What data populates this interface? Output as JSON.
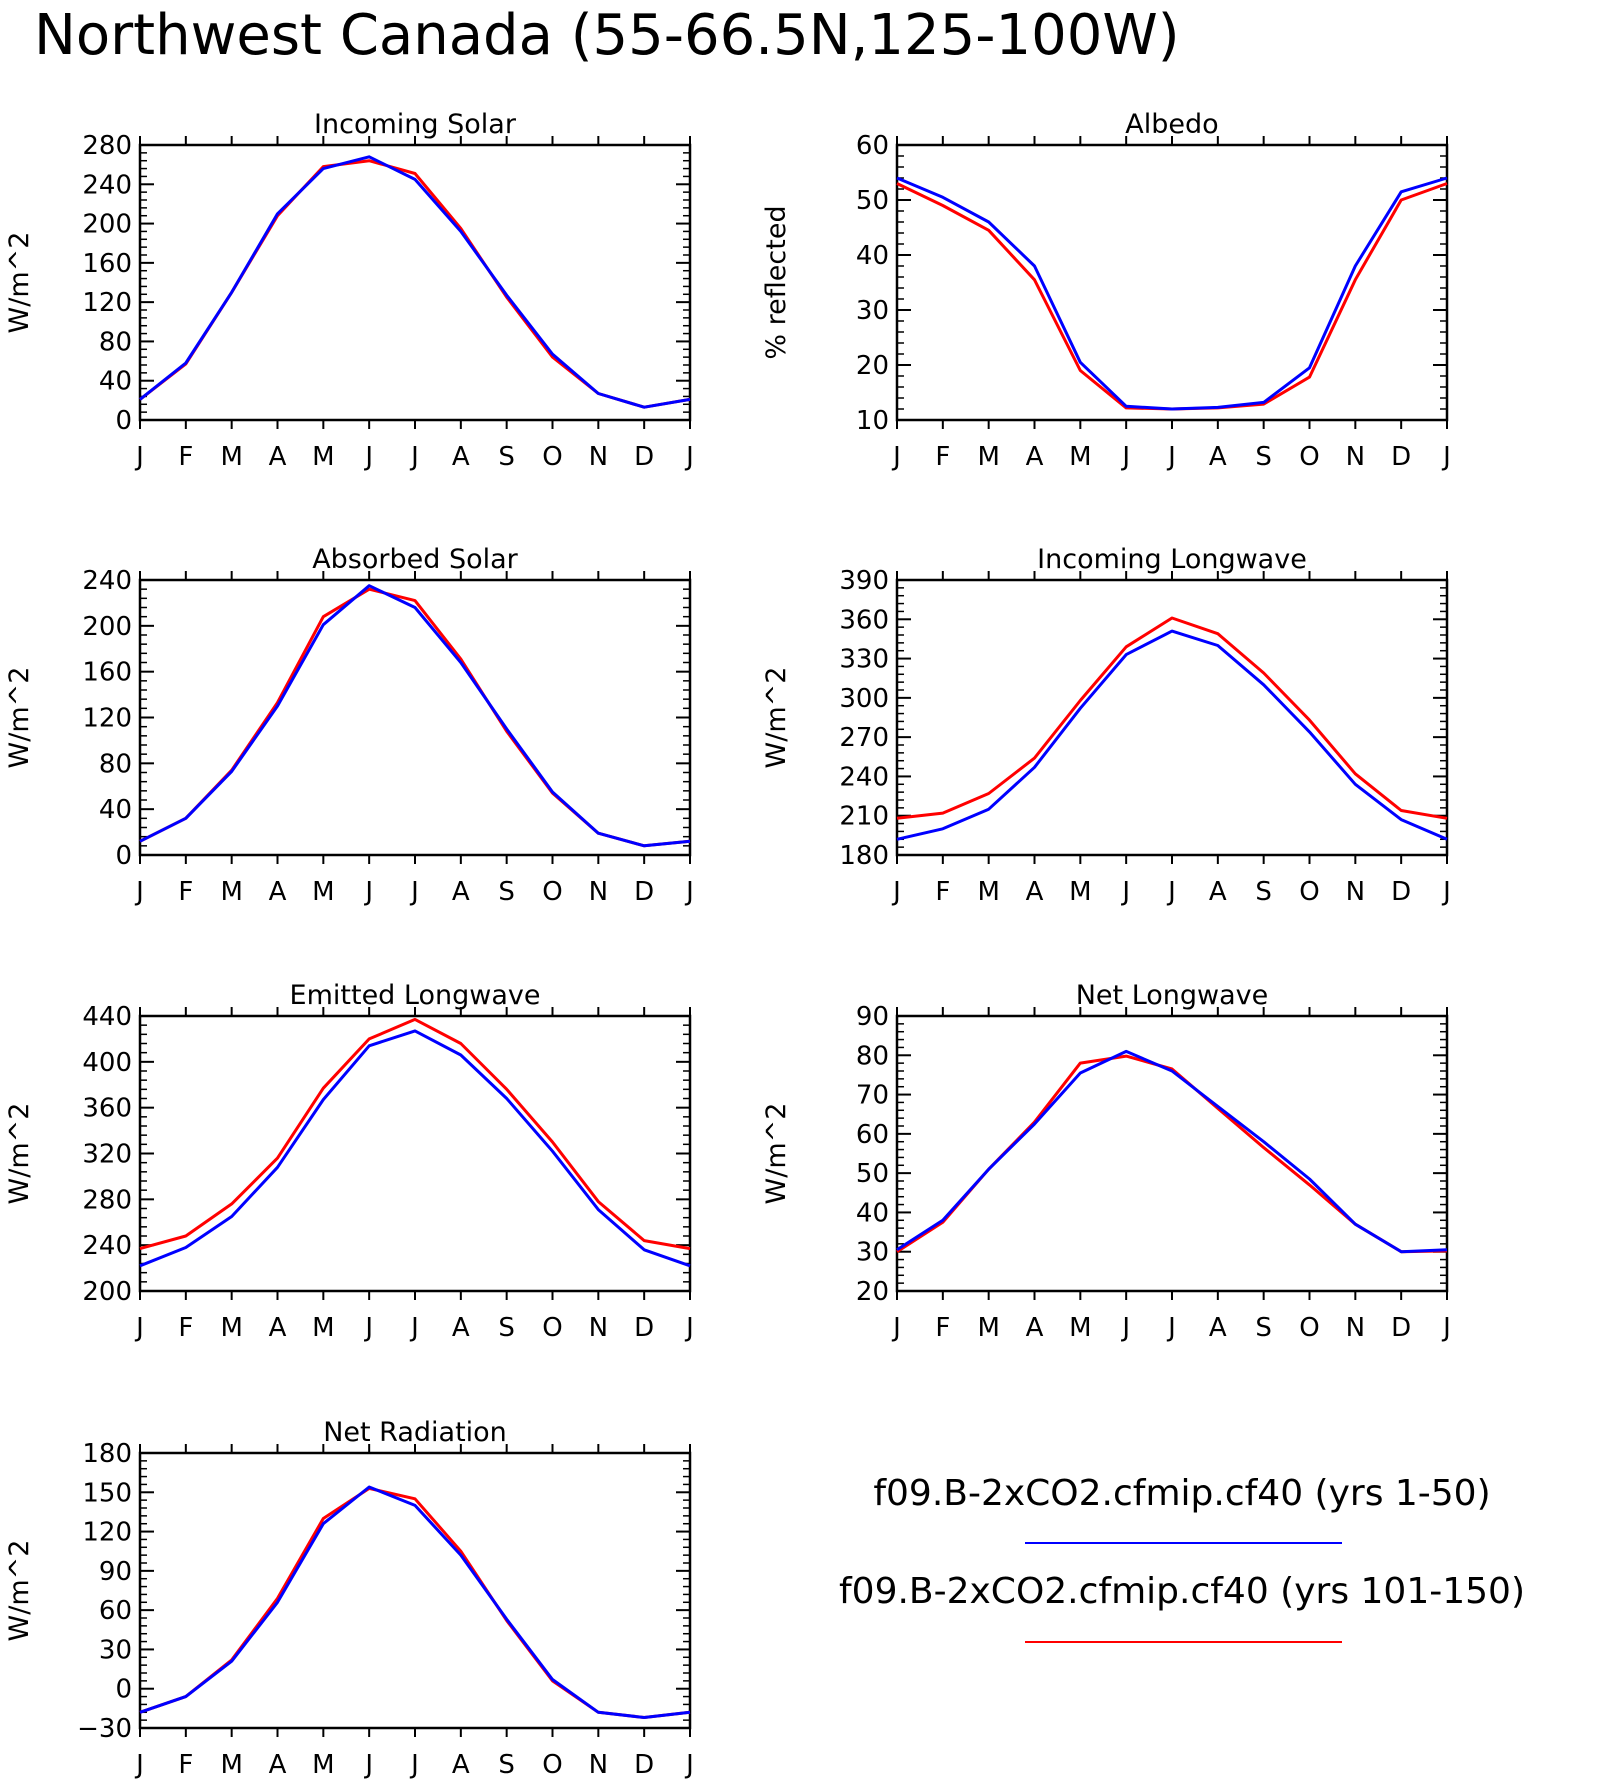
{
  "title": "Northwest Canada (55-66.5N,125-100W)",
  "legend": {
    "entries": [
      {
        "label": "f09.B-2xCO2.cfmip.cf40 (yrs 1-50)",
        "color": "#0000ff"
      },
      {
        "label": "f09.B-2xCO2.cfmip.cf40 (yrs 101-150)",
        "color": "#ff0000"
      }
    ]
  },
  "chart_data": [
    {
      "type": "line",
      "title": "Incoming Solar",
      "ylabel": "W/m^2",
      "categories": [
        "J",
        "F",
        "M",
        "A",
        "M",
        "J",
        "J",
        "A",
        "S",
        "O",
        "N",
        "D",
        "J"
      ],
      "ylim": [
        0,
        280
      ],
      "yticks": [
        0,
        40,
        80,
        120,
        160,
        200,
        240,
        280
      ],
      "grid": false,
      "series": [
        {
          "name": "f09.B-2xCO2.cfmip.cf40 (yrs 1-50)",
          "color": "#0000ff",
          "values": [
            21,
            58,
            130,
            210,
            256,
            268,
            245,
            192,
            127,
            67,
            27,
            13,
            21
          ]
        },
        {
          "name": "f09.B-2xCO2.cfmip.cf40 (yrs 101-150)",
          "color": "#ff0000",
          "values": [
            21,
            57,
            130,
            208,
            258,
            264,
            251,
            195,
            125,
            64,
            27,
            13,
            21
          ]
        }
      ]
    },
    {
      "type": "line",
      "title": "Albedo",
      "ylabel": "% reflected",
      "categories": [
        "J",
        "F",
        "M",
        "A",
        "M",
        "J",
        "J",
        "A",
        "S",
        "O",
        "N",
        "D",
        "J"
      ],
      "ylim": [
        10,
        60
      ],
      "yticks": [
        10,
        20,
        30,
        40,
        50,
        60
      ],
      "grid": false,
      "series": [
        {
          "name": "f09.B-2xCO2.cfmip.cf40 (yrs 1-50)",
          "color": "#0000ff",
          "values": [
            54,
            50.5,
            46,
            38,
            20.5,
            12.5,
            12,
            12.3,
            13.2,
            19.5,
            38,
            51.5,
            54
          ]
        },
        {
          "name": "f09.B-2xCO2.cfmip.cf40 (yrs 101-150)",
          "color": "#ff0000",
          "values": [
            53,
            49,
            44.5,
            35.5,
            19,
            12.2,
            12,
            12.2,
            12.9,
            17.8,
            35.5,
            50,
            53
          ]
        }
      ]
    },
    {
      "type": "line",
      "title": "Absorbed Solar",
      "ylabel": "W/m^2",
      "categories": [
        "J",
        "F",
        "M",
        "A",
        "M",
        "J",
        "J",
        "A",
        "S",
        "O",
        "N",
        "D",
        "J"
      ],
      "ylim": [
        0,
        240
      ],
      "yticks": [
        0,
        40,
        80,
        120,
        160,
        200,
        240
      ],
      "grid": false,
      "series": [
        {
          "name": "f09.B-2xCO2.cfmip.cf40 (yrs 1-50)",
          "color": "#0000ff",
          "values": [
            12,
            32,
            73,
            130,
            201,
            235,
            216,
            168,
            110,
            55,
            19,
            8,
            12
          ]
        },
        {
          "name": "f09.B-2xCO2.cfmip.cf40 (yrs 101-150)",
          "color": "#ff0000",
          "values": [
            12,
            32,
            74,
            133,
            208,
            232,
            222,
            171,
            108,
            54,
            19,
            8,
            12
          ]
        }
      ]
    },
    {
      "type": "line",
      "title": "Incoming Longwave",
      "ylabel": "W/m^2",
      "categories": [
        "J",
        "F",
        "M",
        "A",
        "M",
        "J",
        "J",
        "A",
        "S",
        "O",
        "N",
        "D",
        "J"
      ],
      "ylim": [
        180,
        390
      ],
      "yticks": [
        180,
        210,
        240,
        270,
        300,
        330,
        360,
        390
      ],
      "grid": false,
      "series": [
        {
          "name": "f09.B-2xCO2.cfmip.cf40 (yrs 1-50)",
          "color": "#0000ff",
          "values": [
            192,
            200,
            215,
            247,
            292,
            333,
            351,
            340,
            310,
            274,
            234,
            207,
            192
          ]
        },
        {
          "name": "f09.B-2xCO2.cfmip.cf40 (yrs 101-150)",
          "color": "#ff0000",
          "values": [
            208,
            212,
            227,
            254,
            298,
            339,
            361,
            349,
            319,
            283,
            242,
            214,
            208
          ]
        }
      ]
    },
    {
      "type": "line",
      "title": "Emitted Longwave",
      "ylabel": "W/m^2",
      "categories": [
        "J",
        "F",
        "M",
        "A",
        "M",
        "J",
        "J",
        "A",
        "S",
        "O",
        "N",
        "D",
        "J"
      ],
      "ylim": [
        200,
        440
      ],
      "yticks": [
        200,
        240,
        280,
        320,
        360,
        400,
        440
      ],
      "grid": false,
      "series": [
        {
          "name": "f09.B-2xCO2.cfmip.cf40 (yrs 1-50)",
          "color": "#0000ff",
          "values": [
            222,
            238,
            265,
            308,
            367,
            414,
            427,
            406,
            368,
            322,
            271,
            236,
            222
          ]
        },
        {
          "name": "f09.B-2xCO2.cfmip.cf40 (yrs 101-150)",
          "color": "#ff0000",
          "values": [
            237,
            248,
            276,
            316,
            377,
            420,
            437,
            416,
            376,
            330,
            278,
            244,
            237
          ]
        }
      ]
    },
    {
      "type": "line",
      "title": "Net Longwave",
      "ylabel": "W/m^2",
      "categories": [
        "J",
        "F",
        "M",
        "A",
        "M",
        "J",
        "J",
        "A",
        "S",
        "O",
        "N",
        "D",
        "J"
      ],
      "ylim": [
        20,
        90
      ],
      "yticks": [
        20,
        30,
        40,
        50,
        60,
        70,
        80,
        90
      ],
      "grid": false,
      "series": [
        {
          "name": "f09.B-2xCO2.cfmip.cf40 (yrs 1-50)",
          "color": "#0000ff",
          "values": [
            30.5,
            38,
            51,
            62.5,
            75.5,
            81,
            76,
            67,
            58,
            48.5,
            37,
            30,
            30.5
          ]
        },
        {
          "name": "f09.B-2xCO2.cfmip.cf40 (yrs 101-150)",
          "color": "#ff0000",
          "values": [
            30,
            37.5,
            51,
            63,
            78,
            79.8,
            76.5,
            66.5,
            56.5,
            47,
            37,
            30,
            30.2
          ]
        }
      ]
    },
    {
      "type": "line",
      "title": "Net Radiation",
      "ylabel": "W/m^2",
      "categories": [
        "J",
        "F",
        "M",
        "A",
        "M",
        "J",
        "J",
        "A",
        "S",
        "O",
        "N",
        "D",
        "J"
      ],
      "ylim": [
        -30,
        180
      ],
      "yticks": [
        -30,
        0,
        30,
        60,
        90,
        120,
        150,
        180
      ],
      "grid": false,
      "series": [
        {
          "name": "f09.B-2xCO2.cfmip.cf40 (yrs 1-50)",
          "color": "#0000ff",
          "values": [
            -18,
            -6,
            21,
            66,
            126,
            154,
            140,
            102,
            53,
            7,
            -18,
            -22,
            -18
          ]
        },
        {
          "name": "f09.B-2xCO2.cfmip.cf40 (yrs 101-150)",
          "color": "#ff0000",
          "values": [
            -18,
            -6,
            22,
            69,
            130,
            153,
            145,
            105,
            52,
            6,
            -18,
            -22,
            -18
          ]
        }
      ]
    }
  ]
}
